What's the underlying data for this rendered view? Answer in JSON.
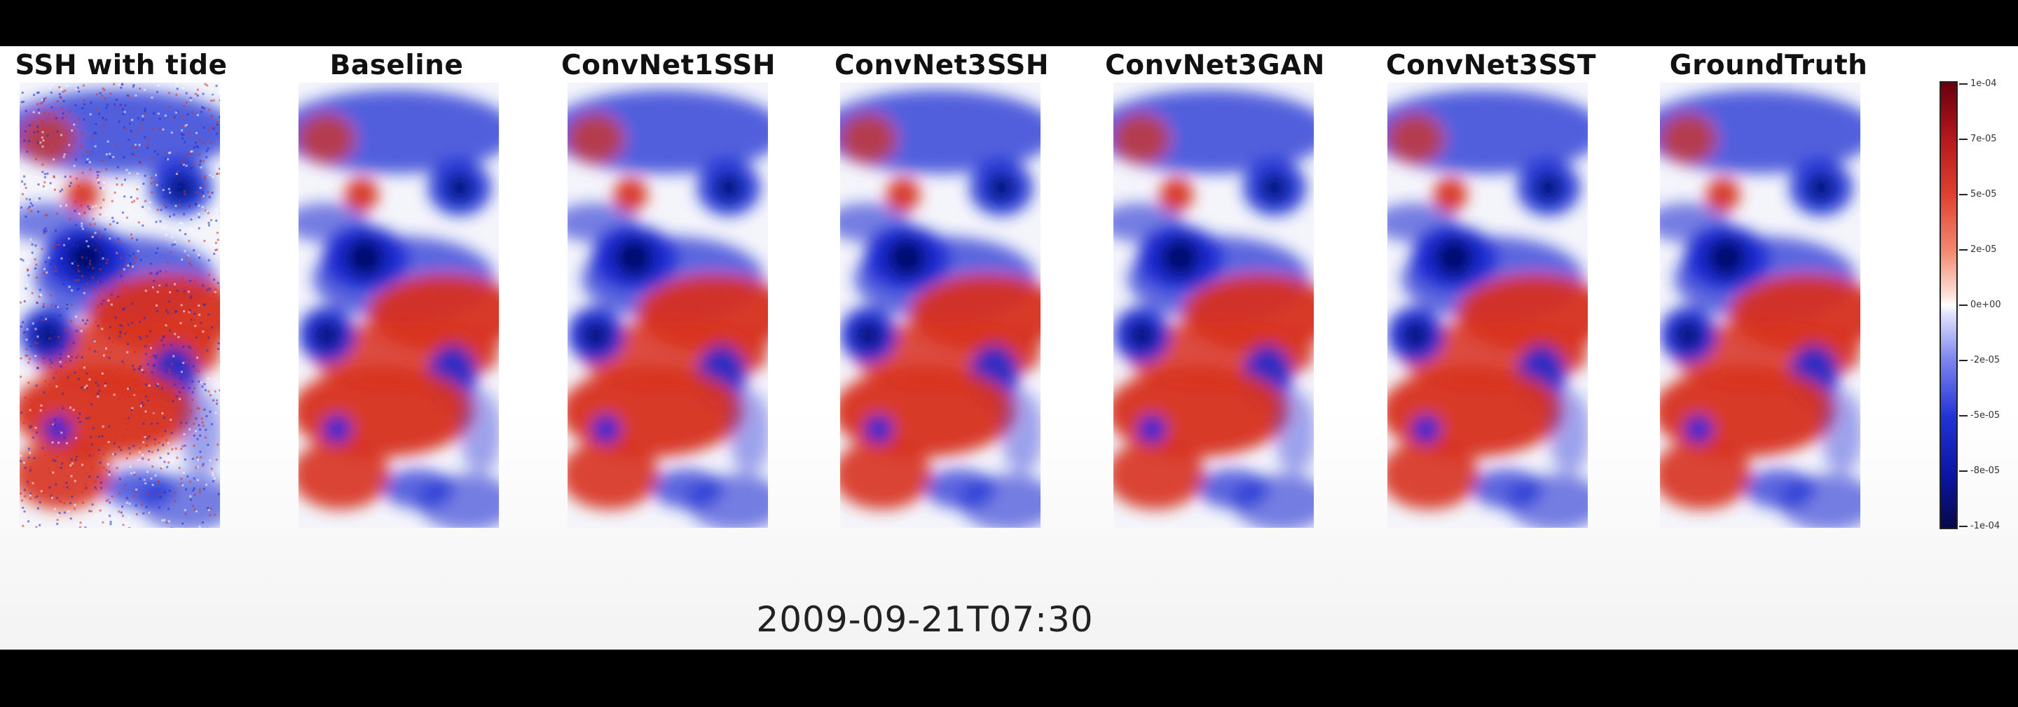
{
  "panels": [
    {
      "title": "SSH with tide",
      "noisy": true
    },
    {
      "title": "Baseline",
      "noisy": false
    },
    {
      "title": "ConvNet1SSH",
      "noisy": false
    },
    {
      "title": "ConvNet3SSH",
      "noisy": false
    },
    {
      "title": "ConvNet3GAN",
      "noisy": false
    },
    {
      "title": "ConvNet3SST",
      "noisy": false
    },
    {
      "title": "GroundTruth",
      "noisy": false
    }
  ],
  "timestamp": "2009-09-21T07:30",
  "colorbar": {
    "ticks": [
      "1e-04",
      "7e-05",
      "5e-05",
      "2e-05",
      "0e+00",
      "-2e-05",
      "-5e-05",
      "-8e-05",
      "-1e-04"
    ],
    "colors": {
      "max": "#67000d",
      "mid": "#ffffff",
      "min": "#08084a"
    }
  },
  "colors": {
    "positive": "#d7301f",
    "negative": "#1a2bd1",
    "background": "#ffffff",
    "letterbox": "#000000"
  }
}
